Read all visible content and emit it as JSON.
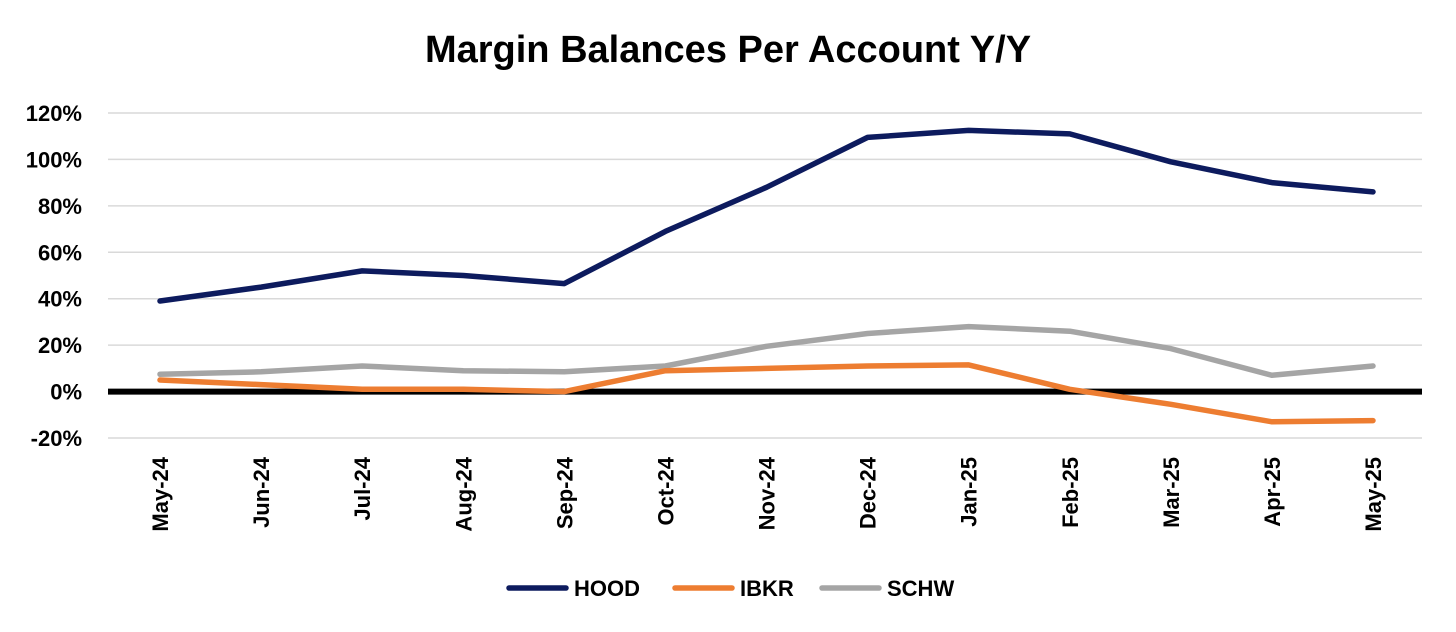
{
  "chart_data": {
    "type": "line",
    "title": "Margin Balances Per Account Y/Y",
    "xlabel": "",
    "ylabel": "",
    "categories": [
      "May-24",
      "Jun-24",
      "Jul-24",
      "Aug-24",
      "Sep-24",
      "Oct-24",
      "Nov-24",
      "Dec-24",
      "Jan-25",
      "Feb-25",
      "Mar-25",
      "Apr-25",
      "May-25"
    ],
    "ylim": [
      -20,
      120
    ],
    "yticks": [
      -20,
      0,
      20,
      40,
      60,
      80,
      100,
      120
    ],
    "ytick_labels": [
      "-20%",
      "0%",
      "20%",
      "40%",
      "60%",
      "80%",
      "100%",
      "120%"
    ],
    "grid": true,
    "legend_position": "bottom",
    "series": [
      {
        "name": "HOOD",
        "color": "#0d1b5e",
        "values": [
          39,
          45,
          52,
          50,
          46.5,
          69,
          88,
          109.5,
          112.5,
          111,
          99,
          90,
          86
        ]
      },
      {
        "name": "IBKR",
        "color": "#ed7d31",
        "values": [
          5,
          3,
          1,
          1,
          0,
          9,
          10,
          11,
          11.5,
          1,
          -5.5,
          -13,
          -12.5
        ]
      },
      {
        "name": "SCHW",
        "color": "#a5a5a5",
        "values": [
          7.5,
          8.5,
          11,
          9,
          8.5,
          11,
          19.5,
          25,
          28,
          26,
          18.5,
          7,
          11
        ]
      }
    ]
  }
}
